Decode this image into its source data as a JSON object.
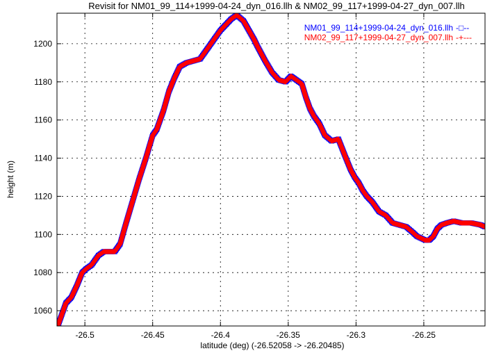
{
  "chart_data": {
    "type": "line",
    "title": "Revisit for NM01_99_114+1999-04-24_dyn_016.llh & NM02_99_117+1999-04-27_dyn_007.llh",
    "xlabel": "latitude (deg) (-26.52058 -> -26.20485)",
    "ylabel": "height (m)",
    "xlim": [
      -26.52058,
      -26.20485
    ],
    "ylim": [
      1052,
      1216
    ],
    "x_ticks": [
      -26.5,
      -26.45,
      -26.4,
      -26.35,
      -26.3,
      -26.25
    ],
    "x_tick_labels": [
      "-26.5",
      "-26.45",
      "-26.4",
      "-26.35",
      "-26.3",
      "-26.25"
    ],
    "y_ticks": [
      1060,
      1080,
      1100,
      1120,
      1140,
      1160,
      1180,
      1200
    ],
    "y_tick_labels": [
      "1060",
      "1080",
      "1100",
      "1120",
      "1140",
      "1160",
      "1180",
      "1200"
    ],
    "grid": true,
    "legend_position": "top-right",
    "series": [
      {
        "name": "NM01_99_114+1999-04-24_dyn_016.llh",
        "legend_marker": "-□--",
        "color": "#0000ff",
        "marker": "square",
        "x": [
          -26.52,
          -26.517,
          -26.514,
          -26.51,
          -26.506,
          -26.502,
          -26.499,
          -26.495,
          -26.49,
          -26.486,
          -26.483,
          -26.478,
          -26.474,
          -26.47,
          -26.465,
          -26.46,
          -26.455,
          -26.45,
          -26.447,
          -26.442,
          -26.438,
          -26.434,
          -26.43,
          -26.425,
          -26.42,
          -26.415,
          -26.41,
          -26.405,
          -26.4,
          -26.396,
          -26.392,
          -26.388,
          -26.383,
          -26.379,
          -26.375,
          -26.373,
          -26.37,
          -26.367,
          -26.362,
          -26.357,
          -26.352,
          -26.348,
          -26.344,
          -26.34,
          -26.337,
          -26.334,
          -26.331,
          -26.327,
          -26.323,
          -26.318,
          -26.313,
          -26.308,
          -26.304,
          -26.301,
          -26.298,
          -26.295,
          -26.292,
          -26.288,
          -26.283,
          -26.278,
          -26.273,
          -26.268,
          -26.263,
          -26.258,
          -26.255,
          -26.252,
          -26.249,
          -26.246,
          -26.243,
          -26.24,
          -26.237,
          -26.233,
          -26.228,
          -26.222,
          -26.215,
          -26.208,
          -26.2049
        ],
        "y": [
          1052,
          1058,
          1064,
          1067,
          1073,
          1080,
          1082,
          1084,
          1089,
          1091,
          1091,
          1091,
          1095,
          1105,
          1117,
          1129,
          1140,
          1152,
          1155,
          1165,
          1175,
          1182,
          1188,
          1190,
          1191,
          1192,
          1197,
          1202,
          1207,
          1210,
          1213,
          1215,
          1212,
          1207,
          1202,
          1199,
          1195,
          1191,
          1185,
          1181,
          1180,
          1183,
          1181,
          1179,
          1172,
          1166,
          1162,
          1158,
          1152,
          1149,
          1150,
          1141,
          1134,
          1130,
          1127,
          1123,
          1120,
          1117,
          1112,
          1110,
          1106,
          1105,
          1104,
          1101,
          1099,
          1098,
          1097,
          1097,
          1099,
          1103,
          1105,
          1106,
          1107,
          1106,
          1106,
          1105,
          1104
        ]
      },
      {
        "name": "NM02_99_117+1999-04-27_dyn_007.llh",
        "legend_marker": "-+---",
        "color": "#ff0000",
        "marker": "plus",
        "x": [
          -26.52,
          -26.517,
          -26.514,
          -26.51,
          -26.506,
          -26.502,
          -26.499,
          -26.495,
          -26.49,
          -26.486,
          -26.483,
          -26.478,
          -26.474,
          -26.47,
          -26.465,
          -26.46,
          -26.455,
          -26.45,
          -26.447,
          -26.442,
          -26.438,
          -26.434,
          -26.43,
          -26.425,
          -26.42,
          -26.415,
          -26.41,
          -26.405,
          -26.4,
          -26.396,
          -26.392,
          -26.388,
          -26.383,
          -26.379,
          -26.375,
          -26.373,
          -26.37,
          -26.367,
          -26.362,
          -26.357,
          -26.352,
          -26.348,
          -26.344,
          -26.34,
          -26.337,
          -26.334,
          -26.331,
          -26.327,
          -26.323,
          -26.318,
          -26.313,
          -26.308,
          -26.304,
          -26.301,
          -26.298,
          -26.295,
          -26.292,
          -26.288,
          -26.283,
          -26.278,
          -26.273,
          -26.268,
          -26.263,
          -26.258,
          -26.255,
          -26.252,
          -26.249,
          -26.246,
          -26.243,
          -26.24,
          -26.237,
          -26.233,
          -26.228,
          -26.222,
          -26.215,
          -26.208,
          -26.2049
        ],
        "y": [
          1052,
          1058,
          1064,
          1067,
          1073,
          1080,
          1082,
          1084,
          1089,
          1091,
          1091,
          1091,
          1095,
          1105,
          1117,
          1129,
          1140,
          1152,
          1155,
          1165,
          1175,
          1182,
          1188,
          1190,
          1191,
          1192,
          1197,
          1202,
          1207,
          1210,
          1213,
          1215,
          1212,
          1207,
          1202,
          1199,
          1195,
          1191,
          1185,
          1181,
          1180,
          1183,
          1181,
          1179,
          1172,
          1166,
          1162,
          1158,
          1152,
          1149,
          1150,
          1141,
          1134,
          1130,
          1127,
          1123,
          1120,
          1117,
          1112,
          1110,
          1106,
          1105,
          1104,
          1101,
          1099,
          1098,
          1097,
          1097,
          1099,
          1103,
          1105,
          1106,
          1107,
          1106,
          1106,
          1105,
          1104
        ]
      }
    ]
  }
}
